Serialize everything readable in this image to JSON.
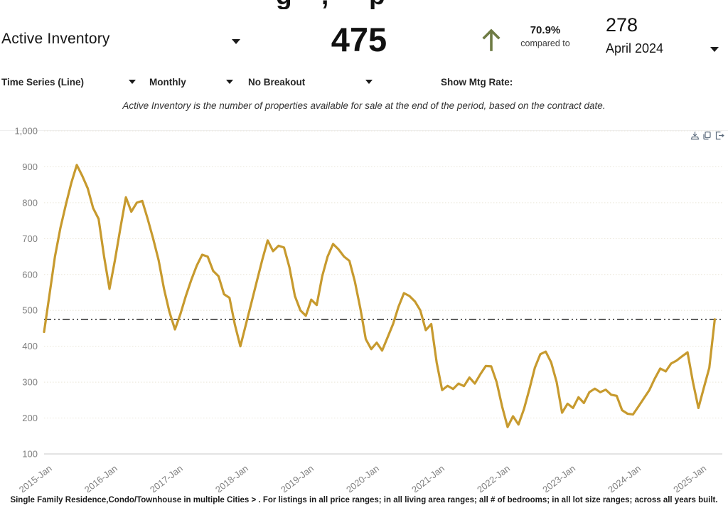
{
  "header": {
    "clipped_title_fragments": [
      "g",
      ",",
      "p"
    ],
    "metric_selector": {
      "label": "Active Inventory"
    },
    "current_value": "475",
    "comparison": {
      "direction": "up",
      "percent": "70.9%",
      "caption": "compared to",
      "previous_value": "278",
      "previous_period": "April 2024"
    }
  },
  "controls": {
    "chart_type": "Time Series (Line)",
    "frequency": "Monthly",
    "breakout": "No Breakout",
    "mtg_rate_label": "Show Mtg Rate:"
  },
  "subtitle": "Active Inventory is the number of properties available for sale at the end of the period, based on the contract date.",
  "toolbar_icons": [
    "download-chart-icon",
    "copy-icon",
    "export-icon"
  ],
  "footer": "Single Family Residence,Condo/Townhouse in multiple Cities > . For listings in all price ranges; in all living area ranges; all # of bedrooms; in all lot size ranges; across all years built.",
  "colors": {
    "line": "#C79A2E",
    "arrow_up": "#6E7B44",
    "axis_label": "#7F7F7F",
    "gridline": "#E9E5D8",
    "axis_line": "#C9C9C9",
    "reference_line": "#111111",
    "toolbar_icon": "#5C6B7C"
  },
  "chart_data": {
    "type": "line",
    "title": "",
    "xlabel": "",
    "ylabel": "",
    "x_start": "2015-Jan",
    "x_end": "2025-Apr",
    "months_per_point": 1,
    "x_tick_labels": [
      "2015-Jan",
      "2016-Jan",
      "2017-Jan",
      "2018-Jan",
      "2019-Jan",
      "2020-Jan",
      "2021-Jan",
      "2022-Jan",
      "2023-Jan",
      "2024-Jan",
      "2025-Jan"
    ],
    "y_ticks": [
      100,
      200,
      300,
      400,
      500,
      600,
      700,
      800,
      900,
      1000
    ],
    "ylim": [
      100,
      1000
    ],
    "grid": "dotted",
    "reference_line_value": 475,
    "series": [
      {
        "name": "Active Inventory",
        "values": [
          440,
          545,
          650,
          730,
          795,
          855,
          905,
          875,
          840,
          785,
          755,
          650,
          560,
          640,
          730,
          815,
          775,
          800,
          805,
          755,
          700,
          640,
          560,
          495,
          447,
          490,
          540,
          585,
          625,
          655,
          650,
          610,
          595,
          545,
          535,
          460,
          400,
          460,
          520,
          580,
          640,
          695,
          665,
          680,
          675,
          620,
          540,
          500,
          485,
          530,
          515,
          595,
          650,
          685,
          670,
          650,
          638,
          580,
          505,
          420,
          392,
          410,
          388,
          425,
          462,
          510,
          548,
          540,
          525,
          500,
          445,
          462,
          355,
          278,
          290,
          281,
          296,
          289,
          313,
          296,
          322,
          345,
          344,
          300,
          232,
          175,
          205,
          182,
          225,
          280,
          340,
          378,
          385,
          355,
          300,
          215,
          240,
          228,
          258,
          242,
          272,
          282,
          272,
          279,
          265,
          262,
          222,
          212,
          210,
          232,
          255,
          278,
          310,
          338,
          330,
          352,
          360,
          372,
          383,
          300,
          228,
          285,
          340,
          475
        ]
      }
    ]
  }
}
